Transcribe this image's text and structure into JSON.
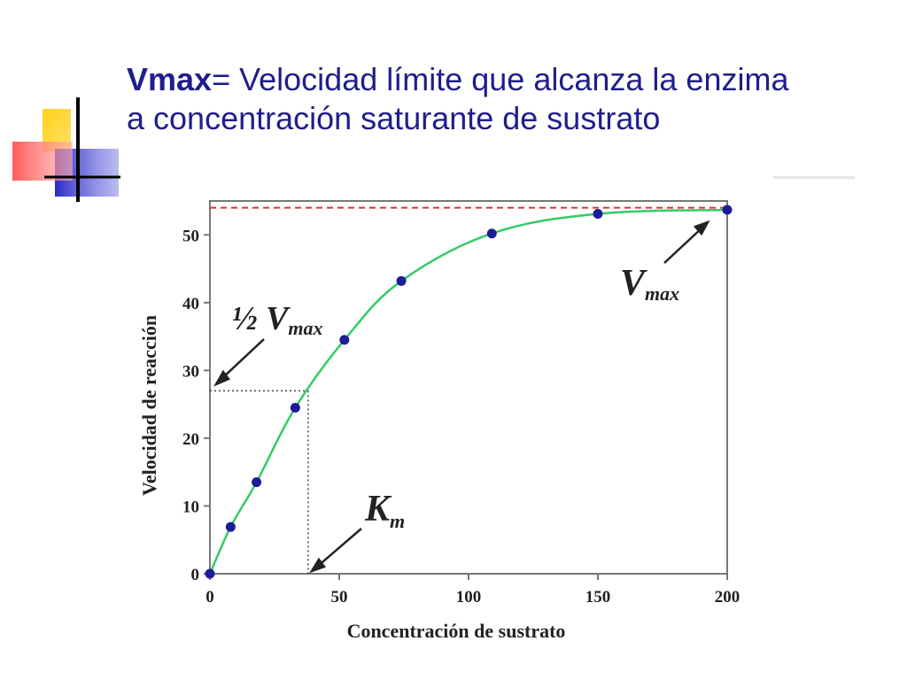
{
  "title": {
    "bold": "Vmax",
    "line1_rest": "= Velocidad límite que alcanza la enzima",
    "line2": "a concentración saturante de sustrato"
  },
  "colors": {
    "title": "#1e1e8c",
    "curve": "#33cc66",
    "points": "#1c1c99",
    "vmax_line": "#e03030",
    "deco_yellow": "#ffcc00",
    "deco_blue": "#3333cc",
    "deco_red": "#ff5a5a"
  },
  "chart_data": {
    "type": "scatter",
    "xlabel": "Concentración de sustrato",
    "ylabel": "Velocidad de reacción",
    "xlim": [
      0,
      200
    ],
    "ylim": [
      0,
      55
    ],
    "x_ticks": [
      0,
      50,
      100,
      150,
      200
    ],
    "y_ticks": [
      0,
      10,
      20,
      30,
      40,
      50
    ],
    "vmax": 54,
    "half_vmax": 27,
    "km": 38,
    "points": [
      {
        "x": 0,
        "y": 0
      },
      {
        "x": 8,
        "y": 6.9
      },
      {
        "x": 18,
        "y": 13.5
      },
      {
        "x": 33,
        "y": 24.5
      },
      {
        "x": 52,
        "y": 34.5
      },
      {
        "x": 74,
        "y": 43.2
      },
      {
        "x": 109,
        "y": 50.2
      },
      {
        "x": 150,
        "y": 53.1
      },
      {
        "x": 200,
        "y": 53.7
      }
    ],
    "annotations": {
      "half_vmax_prefix": "½ V",
      "half_vmax_sub": "max",
      "vmax_main": "V",
      "vmax_sub": "max",
      "km_main": "K",
      "km_sub": "m"
    }
  }
}
